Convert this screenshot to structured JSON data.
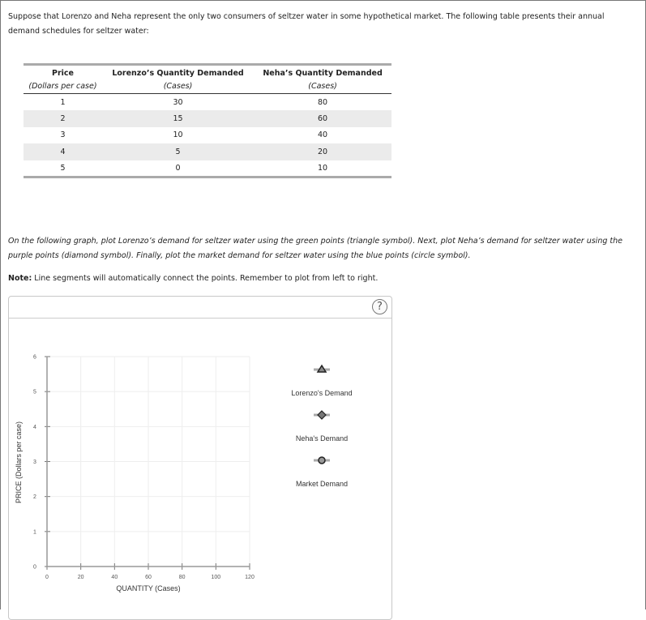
{
  "intro": "Suppose that Lorenzo and Neha represent the only two consumers of seltzer water in some hypothetical market. The following table presents their annual demand schedules for seltzer water:",
  "table": {
    "headers": [
      {
        "title": "Price",
        "unit": "(Dollars per case)"
      },
      {
        "title": "Lorenzo’s Quantity Demanded",
        "unit": "(Cases)"
      },
      {
        "title": "Neha’s Quantity Demanded",
        "unit": "(Cases)"
      }
    ],
    "rows": [
      [
        "1",
        "30",
        "80"
      ],
      [
        "2",
        "15",
        "60"
      ],
      [
        "3",
        "10",
        "40"
      ],
      [
        "4",
        "5",
        "20"
      ],
      [
        "5",
        "0",
        "10"
      ]
    ]
  },
  "instructions": "On the following graph, plot Lorenzo’s demand for seltzer water using the green points (triangle symbol). Next, plot Neha’s demand for seltzer water using the purple points (diamond symbol). Finally, plot the market demand for seltzer water using the blue points (circle symbol).",
  "note": {
    "label": "Note:",
    "text": " Line segments will automatically connect the points. Remember to plot from left to right."
  },
  "help_label": "?",
  "chart_data": {
    "type": "line",
    "xlabel": "QUANTITY (Cases)",
    "ylabel": "PRICE (Dollars per case)",
    "xlim": [
      0,
      120
    ],
    "ylim": [
      0,
      6
    ],
    "xticks": [
      "0",
      "20",
      "40",
      "60",
      "80",
      "100",
      "120"
    ],
    "yticks": [
      "0",
      "1",
      "2",
      "3",
      "4",
      "5",
      "6"
    ],
    "grid": true,
    "legend_position": "right",
    "series": [
      {
        "name": "Lorenzo's Demand",
        "symbol": "triangle",
        "points": []
      },
      {
        "name": "Neha's Demand",
        "symbol": "diamond",
        "points": []
      },
      {
        "name": "Market Demand",
        "symbol": "circle",
        "points": []
      }
    ]
  }
}
